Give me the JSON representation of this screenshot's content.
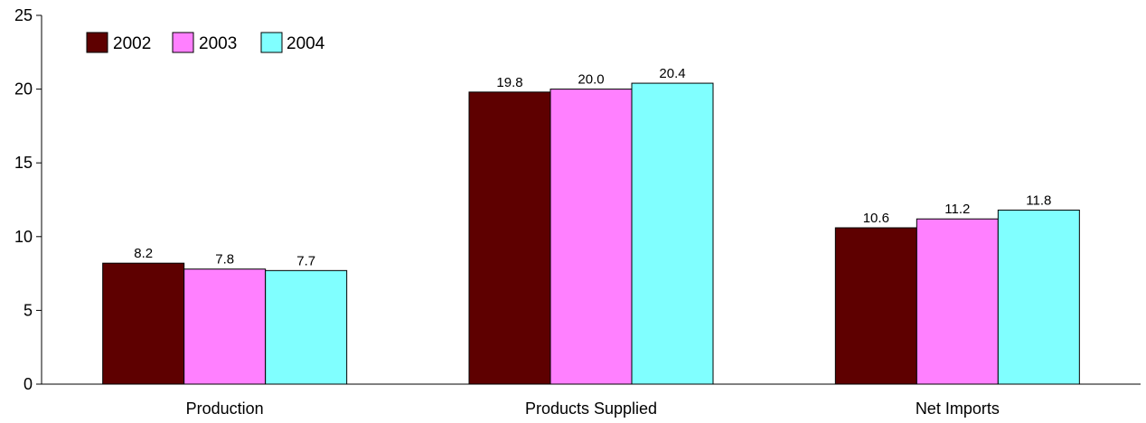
{
  "chart_data": {
    "type": "bar",
    "categories": [
      "Production",
      "Products Supplied",
      "Net Imports"
    ],
    "series": [
      {
        "name": "2002",
        "color": "#5e0000",
        "values": [
          8.2,
          19.8,
          10.6
        ]
      },
      {
        "name": "2003",
        "color": "#ff80ff",
        "values": [
          7.8,
          20.0,
          11.2
        ]
      },
      {
        "name": "2004",
        "color": "#80ffff",
        "values": [
          7.7,
          20.4,
          11.8
        ]
      }
    ],
    "value_labels": [
      [
        "8.2",
        "19.8",
        "10.6"
      ],
      [
        "7.8",
        "20.0",
        "11.2"
      ],
      [
        "7.7",
        "20.4",
        "11.8"
      ]
    ],
    "y_ticks": [
      0,
      5,
      10,
      15,
      20,
      25
    ],
    "y_tick_labels": [
      "0",
      "5",
      "10",
      "15",
      "20",
      "25"
    ],
    "ylim": [
      0,
      25
    ],
    "title": "",
    "xlabel": "",
    "ylabel": "",
    "grid": false,
    "legend_position": "top-left"
  }
}
